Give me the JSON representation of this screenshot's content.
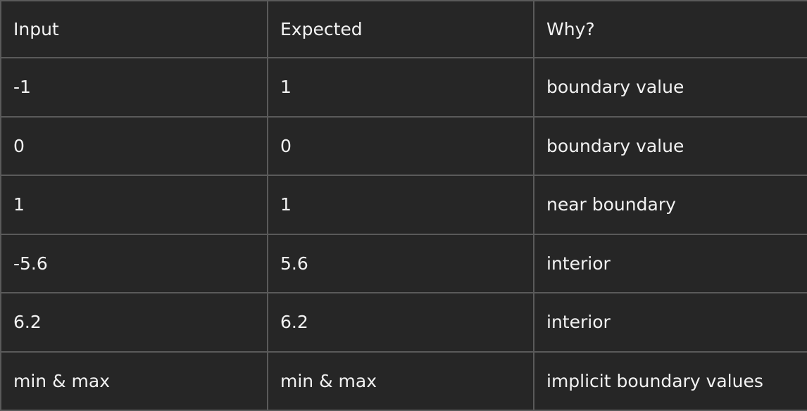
{
  "table": {
    "headers": [
      "Input",
      "Expected",
      "Why?"
    ],
    "rows": [
      [
        "-1",
        "1",
        "boundary value"
      ],
      [
        "0",
        "0",
        "boundary value"
      ],
      [
        "1",
        "1",
        "near boundary"
      ],
      [
        "-5.6",
        "5.6",
        "interior"
      ],
      [
        "6.2",
        "6.2",
        "interior"
      ],
      [
        "min & max",
        "min & max",
        "implicit boundary values"
      ]
    ]
  }
}
